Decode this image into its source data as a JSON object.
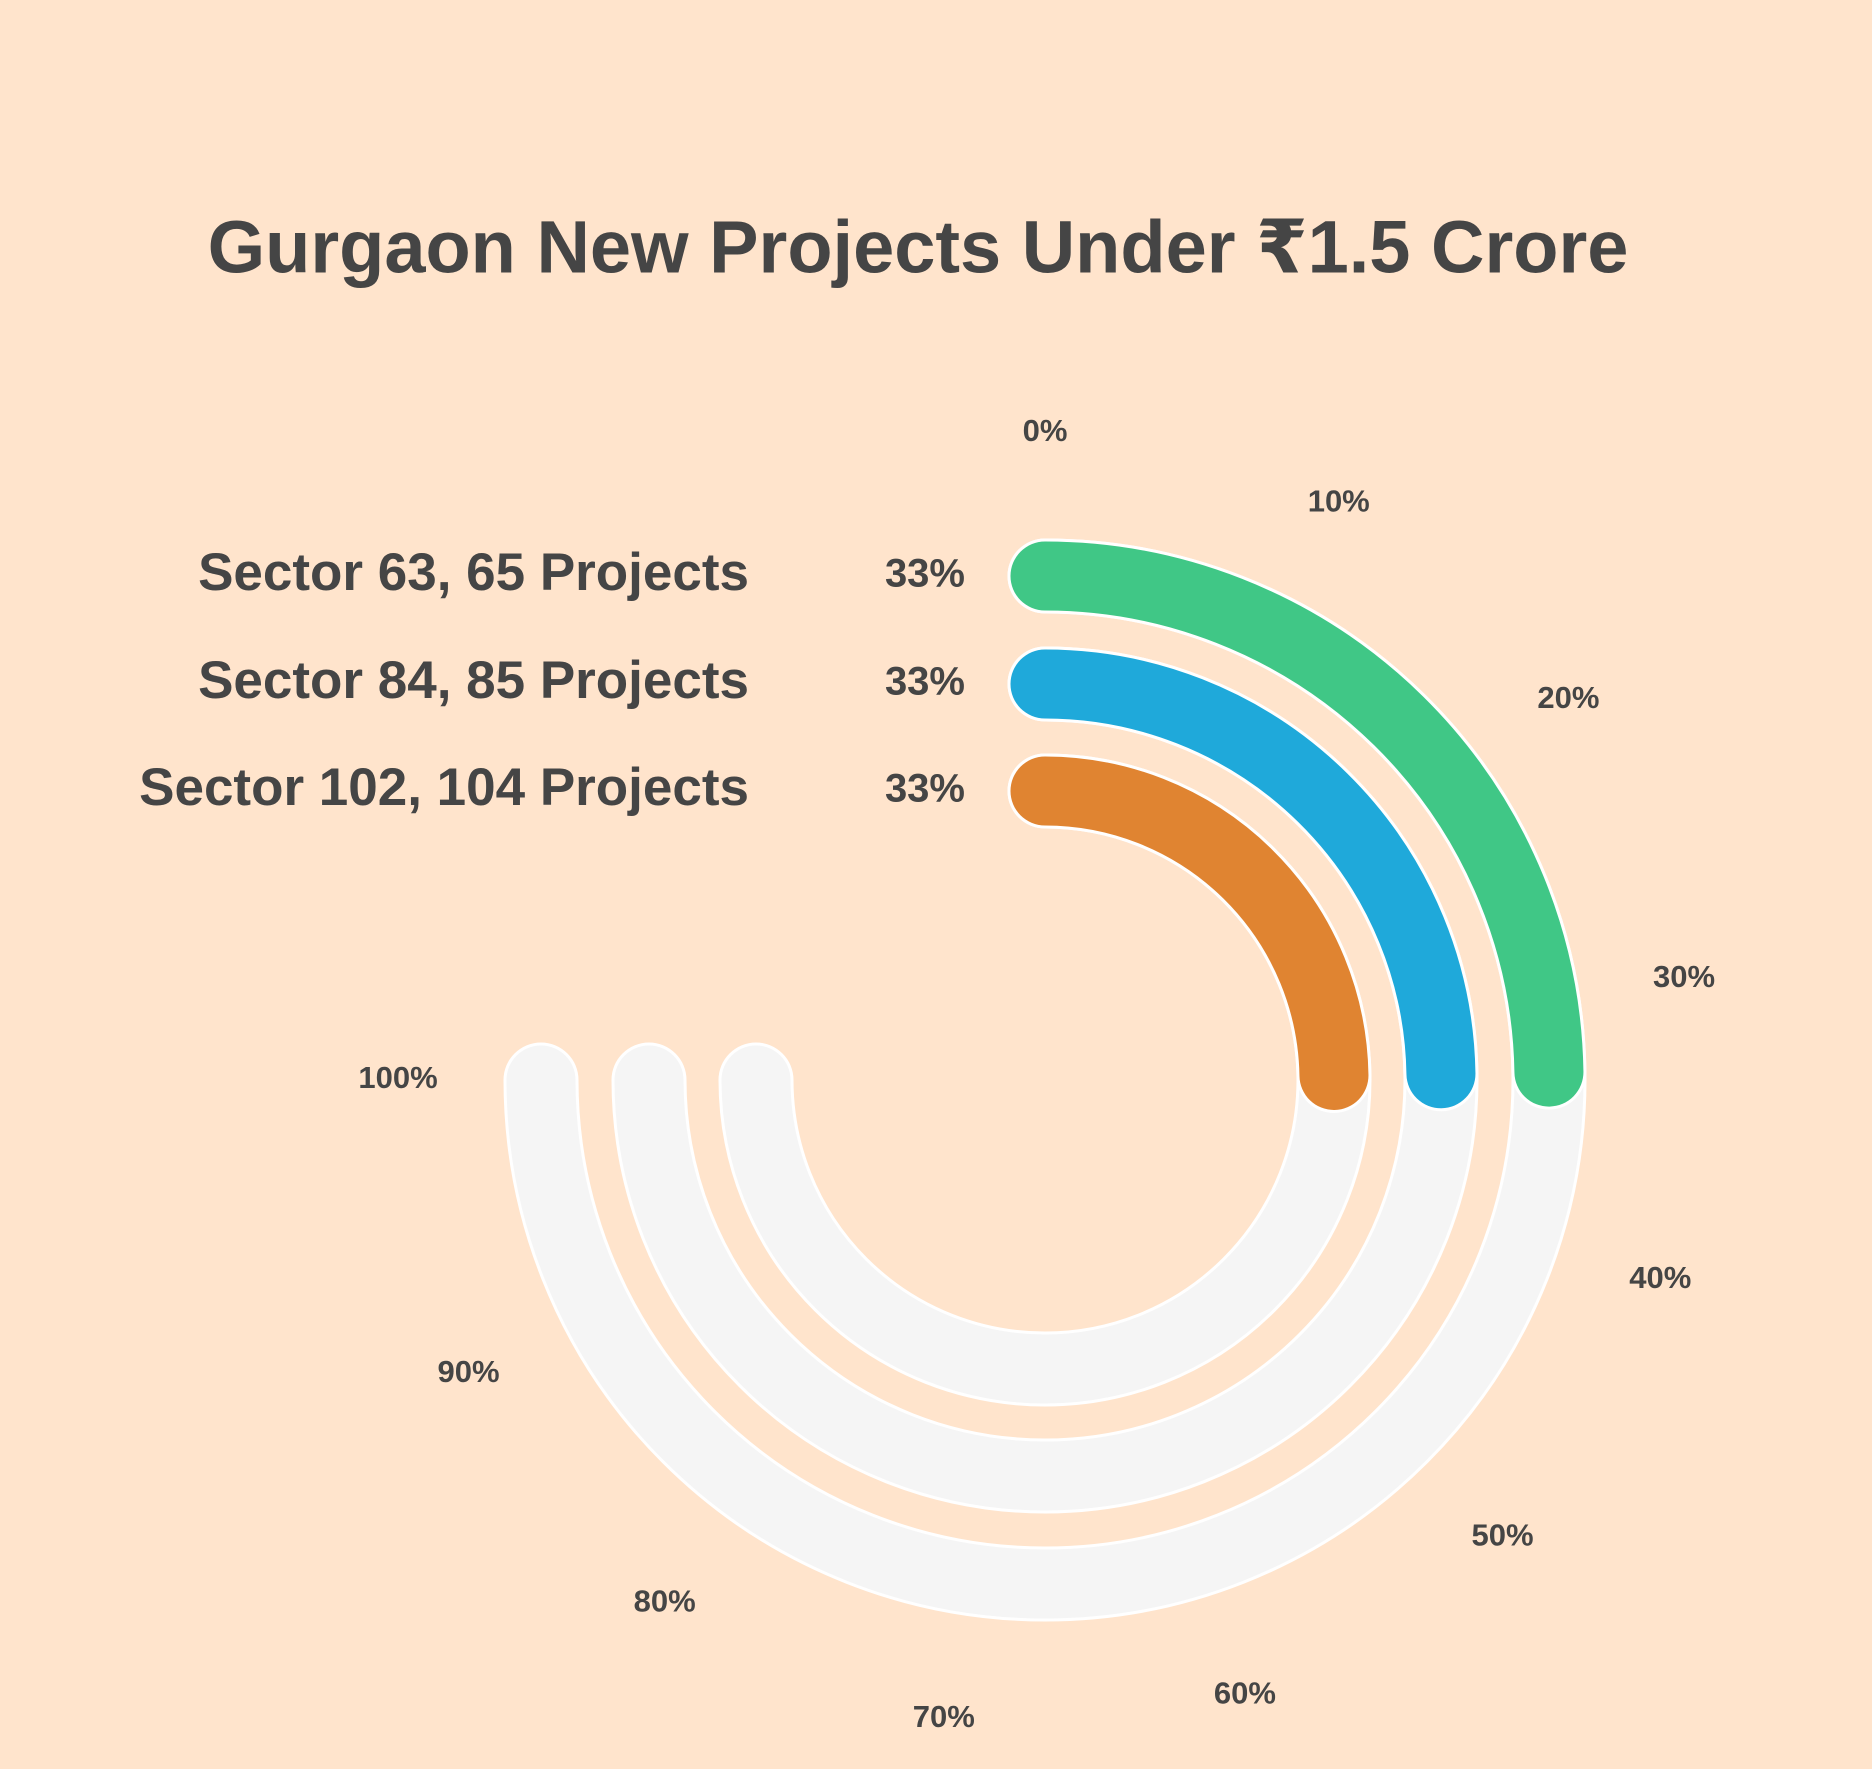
{
  "chart_data": {
    "type": "radialBar",
    "title": "Gurgaon New Projects Under ₹1.5 Crore",
    "categories": [
      "Sector 63, 65 Projects",
      "Sector 84, 85 Projects",
      "Sector 102, 104 Projects"
    ],
    "values": [
      33,
      33,
      33
    ],
    "value_labels": [
      "33%",
      "33%",
      "33%"
    ],
    "colors": [
      "#40c786",
      "#1fa9da",
      "#e08431"
    ],
    "xlim": [
      0,
      100
    ],
    "xticks": [
      {
        "value": 0,
        "label": "0%"
      },
      {
        "value": 10,
        "label": "10%"
      },
      {
        "value": 20,
        "label": "20%"
      },
      {
        "value": 30,
        "label": "30%"
      },
      {
        "value": 40,
        "label": "40%"
      },
      {
        "value": 50,
        "label": "50%"
      },
      {
        "value": 60,
        "label": "60%"
      },
      {
        "value": 70,
        "label": "70%"
      },
      {
        "value": 80,
        "label": "80%"
      },
      {
        "value": 90,
        "label": "90%"
      },
      {
        "value": 100,
        "label": "100%"
      }
    ]
  }
}
